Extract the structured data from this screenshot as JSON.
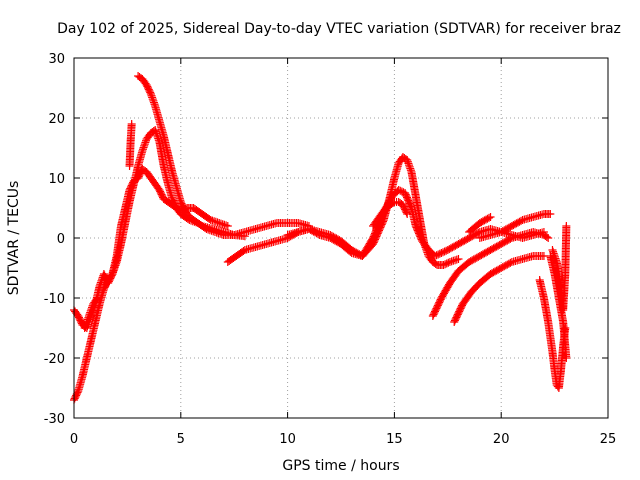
{
  "chart_data": {
    "type": "scatter",
    "title": "Day 102 of 2025, Sidereal Day-to-day VTEC variation (SDTVAR) for receiver braz",
    "xlabel": "GPS time / hours",
    "ylabel": "SDTVAR / TECUs",
    "xlim": [
      0,
      25
    ],
    "ylim": [
      -30,
      30
    ],
    "xticks": [
      0,
      5,
      10,
      15,
      20,
      25
    ],
    "yticks": [
      -30,
      -20,
      -10,
      0,
      10,
      20,
      30
    ],
    "grid": true,
    "marker": "+",
    "color": "#ff0000",
    "series": [
      {
        "x": [
          0.0,
          0.2,
          0.4,
          0.6,
          0.8,
          1.0,
          1.2,
          1.4,
          1.6,
          1.8,
          2.0,
          2.2,
          2.4,
          2.6,
          2.8,
          3.0,
          3.2,
          3.4,
          3.6,
          3.8,
          4.0,
          4.2,
          4.4,
          4.6,
          4.8,
          5.0,
          5.4,
          5.8,
          6.2,
          6.6,
          7.0,
          7.5,
          8.0,
          8.5,
          9.0,
          9.5,
          10.0,
          10.5,
          11.0
        ],
        "y": [
          -27.0,
          -25.5,
          -23.0,
          -20.0,
          -17.0,
          -14.0,
          -11.0,
          -8.5,
          -7.0,
          -6.0,
          -4.0,
          -1.0,
          2.5,
          6.0,
          9.0,
          12.0,
          14.5,
          16.5,
          17.5,
          18.0,
          16.0,
          12.0,
          9.0,
          6.5,
          5.0,
          4.0,
          3.0,
          2.5,
          1.5,
          1.0,
          0.5,
          0.5,
          1.0,
          1.5,
          2.0,
          2.5,
          2.5,
          2.5,
          2.0
        ]
      },
      {
        "x": [
          0.0,
          0.2,
          0.4,
          0.6,
          0.8,
          1.0,
          1.2,
          1.4,
          1.6,
          1.8,
          2.0,
          2.2,
          2.4,
          2.6,
          2.8,
          3.0,
          3.2,
          3.4,
          3.6,
          3.8,
          4.0,
          4.2,
          4.4,
          4.6,
          4.8,
          5.0,
          5.3,
          5.6,
          6.0,
          6.4,
          6.8,
          7.2
        ],
        "y": [
          -12.0,
          -13.0,
          -14.5,
          -15.0,
          -13.0,
          -11.0,
          -8.0,
          -6.0,
          -7.5,
          -6.0,
          -3.0,
          2.0,
          5.0,
          8.0,
          9.5,
          10.0,
          11.5,
          11.0,
          10.0,
          9.0,
          8.0,
          6.5,
          6.0,
          5.5,
          5.0,
          4.5,
          5.0,
          5.0,
          4.0,
          3.0,
          2.5,
          2.0
        ]
      },
      {
        "x": [
          3.0,
          3.2,
          3.4,
          3.6,
          3.8,
          4.0,
          4.2,
          4.4,
          4.6,
          4.8,
          5.0,
          5.2,
          5.4,
          5.6,
          5.8,
          6.0,
          6.5,
          7.0,
          7.5,
          8.0
        ],
        "y": [
          27.0,
          26.5,
          25.5,
          24.0,
          22.0,
          19.5,
          17.0,
          14.0,
          11.0,
          8.5,
          6.0,
          4.5,
          3.5,
          3.0,
          2.5,
          2.0,
          1.5,
          1.0,
          0.5,
          0.3
        ]
      },
      {
        "x": [
          2.6,
          2.65,
          2.7
        ],
        "y": [
          12.0,
          16.0,
          19.0
        ]
      },
      {
        "x": [
          7.2,
          7.6,
          8.0,
          8.5,
          9.0,
          9.5,
          10.0,
          10.5,
          11.0,
          11.5,
          12.0,
          12.5,
          13.0,
          13.5,
          14.0,
          14.5,
          14.8,
          15.0,
          15.2,
          15.4,
          15.6,
          15.8,
          16.0,
          16.2,
          16.4,
          16.6,
          16.8,
          17.0,
          17.3,
          17.6,
          18.0
        ],
        "y": [
          -4.0,
          -3.0,
          -2.0,
          -1.5,
          -1.0,
          -0.5,
          0.0,
          1.0,
          1.5,
          1.0,
          0.5,
          -0.5,
          -2.0,
          -3.0,
          -1.0,
          3.0,
          7.0,
          10.0,
          12.5,
          13.5,
          13.0,
          11.0,
          7.0,
          3.0,
          -1.0,
          -3.0,
          -4.0,
          -4.5,
          -4.5,
          -4.0,
          -3.5
        ]
      },
      {
        "x": [
          10.0,
          10.5,
          11.0,
          11.5,
          12.0,
          12.5,
          13.0,
          13.5,
          14.0,
          14.3,
          14.6,
          14.9,
          15.2,
          15.5,
          15.8,
          16.0,
          16.3,
          16.6,
          16.9,
          17.2,
          17.5,
          18.0,
          18.5,
          19.0,
          19.5,
          20.0,
          20.5,
          21.0,
          21.5,
          22.0
        ],
        "y": [
          0.5,
          1.0,
          1.5,
          0.5,
          0.0,
          -1.0,
          -2.5,
          -3.0,
          0.0,
          2.5,
          5.0,
          7.0,
          8.0,
          7.5,
          5.0,
          2.0,
          -0.5,
          -2.0,
          -3.0,
          -2.5,
          -2.0,
          -1.0,
          0.0,
          1.0,
          1.5,
          1.0,
          0.5,
          0.0,
          0.5,
          1.0
        ]
      },
      {
        "x": [
          14.0,
          14.2,
          14.4,
          14.6,
          14.8,
          15.0,
          15.2,
          15.4,
          15.6
        ],
        "y": [
          2.0,
          3.0,
          4.0,
          5.0,
          5.5,
          6.0,
          6.0,
          5.5,
          4.0
        ]
      },
      {
        "x": [
          16.8,
          17.2,
          17.6,
          18.0,
          18.5,
          19.0,
          19.5,
          20.0,
          20.5,
          21.0,
          21.5,
          22.0,
          22.2
        ],
        "y": [
          -13.0,
          -10.0,
          -7.5,
          -5.5,
          -4.0,
          -3.0,
          -2.0,
          -1.0,
          0.0,
          0.5,
          1.0,
          0.5,
          0.0
        ]
      },
      {
        "x": [
          17.8,
          18.2,
          18.6,
          19.0,
          19.5,
          20.0,
          20.5,
          21.0,
          21.5,
          22.0
        ],
        "y": [
          -14.0,
          -11.0,
          -9.0,
          -7.5,
          -6.0,
          -5.0,
          -4.0,
          -3.5,
          -3.0,
          -3.0
        ]
      },
      {
        "x": [
          19.0,
          19.5,
          20.0,
          20.5,
          21.0,
          21.5,
          22.0,
          22.3
        ],
        "y": [
          0.0,
          0.5,
          1.0,
          2.0,
          3.0,
          3.5,
          4.0,
          4.0
        ]
      },
      {
        "x": [
          18.5,
          19.0,
          19.5
        ],
        "y": [
          1.0,
          2.5,
          3.5
        ]
      },
      {
        "x": [
          21.8,
          22.0,
          22.2,
          22.4,
          22.5,
          22.6,
          22.7,
          22.8,
          22.9,
          23.0
        ],
        "y": [
          -7.0,
          -10.0,
          -14.0,
          -19.0,
          -22.0,
          -24.5,
          -25.0,
          -22.0,
          -18.0,
          -15.0
        ]
      },
      {
        "x": [
          22.3,
          22.5,
          22.7,
          22.9,
          23.0,
          23.05
        ],
        "y": [
          -3.0,
          -6.0,
          -10.0,
          -14.0,
          -18.0,
          -20.0
        ]
      },
      {
        "x": [
          22.4,
          22.6,
          22.8,
          22.9,
          23.0,
          23.05
        ],
        "y": [
          -2.0,
          -4.0,
          -8.0,
          -12.0,
          -6.0,
          2.0
        ]
      },
      {
        "x": [
          0.5,
          0.7,
          0.9,
          1.1
        ],
        "y": [
          -15.0,
          -13.0,
          -11.0,
          -10.0
        ]
      }
    ]
  }
}
